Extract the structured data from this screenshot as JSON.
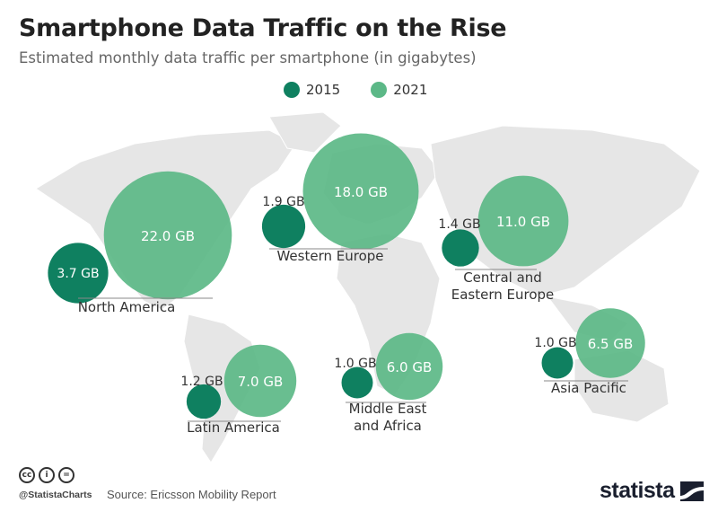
{
  "header": {
    "title": "Smartphone Data Traffic on the Rise",
    "subtitle": "Estimated monthly data traffic per smartphone (in gigabytes)"
  },
  "colors": {
    "year_2015": "#0f8060",
    "year_2021": "#5cb887",
    "map_land": "#e4e4e4",
    "divider": "#888888"
  },
  "chart_data": {
    "type": "bubble-map",
    "title": "Smartphone Data Traffic on the Rise",
    "subtitle": "Estimated monthly data traffic per smartphone (in gigabytes)",
    "unit": "GB",
    "legend": [
      "2015",
      "2021"
    ],
    "legend_position": "top-center",
    "categories": [
      "North America",
      "Western Europe",
      "Central and Eastern Europe",
      "Latin America",
      "Middle East and Africa",
      "Asia Pacific"
    ],
    "series": [
      {
        "name": "2015",
        "values": [
          3.7,
          1.9,
          1.4,
          1.2,
          1.0,
          1.0
        ],
        "labels": [
          "3.7 GB",
          "1.9 GB",
          "1.4 GB",
          "1.2 GB",
          "1.0 GB",
          "1.0 GB"
        ]
      },
      {
        "name": "2021",
        "values": [
          22.0,
          18.0,
          11.0,
          7.0,
          6.0,
          6.5
        ],
        "labels": [
          "22.0 GB",
          "18.0 GB",
          "11.0 GB",
          "7.0 GB",
          "6.0 GB",
          "6.5 GB"
        ]
      }
    ],
    "region_label_lines": [
      [
        "North America"
      ],
      [
        "Western Europe"
      ],
      [
        "Central and",
        "Eastern Europe"
      ],
      [
        "Latin America"
      ],
      [
        "Middle East",
        "and Africa"
      ],
      [
        "Asia Pacific"
      ]
    ]
  },
  "footer": {
    "handle": "@StatistaCharts",
    "source": "Source: Ericsson Mobility Report",
    "brand": "statista",
    "license_icons": [
      "cc-icon",
      "attribution-icon",
      "no-derivatives-icon"
    ],
    "license_glyphs": [
      "cc",
      "i",
      "="
    ]
  }
}
